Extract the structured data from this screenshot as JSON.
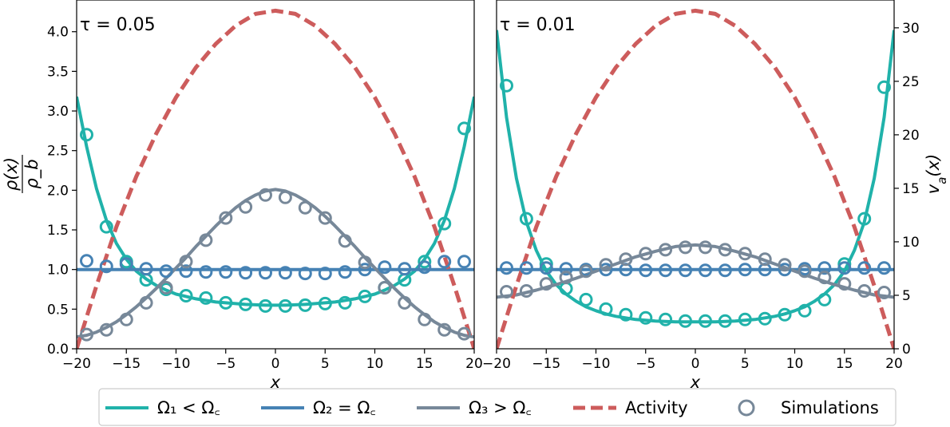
{
  "chart_data": [
    {
      "type": "line",
      "panel_label": "τ = 0.05",
      "xlabel": "x",
      "ylabel": "ρ(x) / ρ_b",
      "ylabel_num": "ρ(x)",
      "ylabel_den": "ρ_b",
      "xlim": [
        -20,
        20
      ],
      "ylim": [
        0,
        4.4
      ],
      "y2lim": [
        0,
        32.6
      ],
      "xticks": [
        -20,
        -15,
        -10,
        -5,
        0,
        5,
        10,
        15,
        20
      ],
      "xticklabels": [
        "−20",
        "−15",
        "−10",
        "−5",
        "0",
        "5",
        "10",
        "15",
        "20"
      ],
      "yticks": [
        0,
        0.5,
        1.0,
        1.5,
        2.0,
        2.5,
        3.0,
        3.5,
        4.0
      ],
      "yticklabels": [
        "0.0",
        "0.5",
        "1.0",
        "1.5",
        "2.0",
        "2.5",
        "3.0",
        "3.5",
        "4.0"
      ],
      "grid": false,
      "series": [
        {
          "name": "Ω₁ < Ω꜀",
          "kind": "line",
          "color": "#20b2aa",
          "x": [
            -20,
            -19,
            -18,
            -17,
            -16,
            -15,
            -14,
            -13,
            -12,
            -11,
            -10,
            -9,
            -8,
            -7,
            -6,
            -5,
            -4,
            -3,
            -2,
            -1,
            0,
            1,
            2,
            3,
            4,
            5,
            6,
            7,
            8,
            9,
            10,
            11,
            12,
            13,
            14,
            15,
            16,
            17,
            18,
            19,
            20
          ],
          "y": [
            3.18,
            2.55,
            2.02,
            1.62,
            1.33,
            1.13,
            0.98,
            0.88,
            0.8,
            0.74,
            0.69,
            0.66,
            0.63,
            0.61,
            0.59,
            0.58,
            0.57,
            0.56,
            0.555,
            0.55,
            0.55,
            0.55,
            0.555,
            0.56,
            0.57,
            0.58,
            0.59,
            0.61,
            0.63,
            0.66,
            0.69,
            0.74,
            0.8,
            0.88,
            0.98,
            1.13,
            1.33,
            1.62,
            2.02,
            2.55,
            3.18
          ]
        },
        {
          "name": "Ω₂ = Ω꜀",
          "kind": "line",
          "color": "#4682b4",
          "x": [
            -20,
            20
          ],
          "y": [
            1.0,
            1.0
          ]
        },
        {
          "name": "Ω₃ > Ω꜀",
          "kind": "line",
          "color": "#778899",
          "x": [
            -20,
            -19,
            -18,
            -17,
            -16,
            -15,
            -14,
            -13,
            -12,
            -11,
            -10,
            -9,
            -8,
            -7,
            -6,
            -5,
            -4,
            -3,
            -2,
            -1,
            0,
            1,
            2,
            3,
            4,
            5,
            6,
            7,
            8,
            9,
            10,
            11,
            12,
            13,
            14,
            15,
            16,
            17,
            18,
            19,
            20
          ],
          "y": [
            0.15,
            0.17,
            0.21,
            0.27,
            0.34,
            0.43,
            0.53,
            0.64,
            0.76,
            0.89,
            1.02,
            1.15,
            1.29,
            1.42,
            1.55,
            1.67,
            1.78,
            1.87,
            1.94,
            1.99,
            2.01,
            1.99,
            1.94,
            1.87,
            1.78,
            1.67,
            1.55,
            1.42,
            1.29,
            1.15,
            1.02,
            0.89,
            0.76,
            0.64,
            0.53,
            0.43,
            0.34,
            0.27,
            0.21,
            0.17,
            0.15
          ]
        },
        {
          "name": "Activity",
          "kind": "dashed",
          "color": "#cd5c5c",
          "axis": "right",
          "x": [
            -20,
            -18,
            -16,
            -14,
            -12,
            -10,
            -8,
            -6,
            -4,
            -2,
            0,
            2,
            4,
            6,
            8,
            10,
            12,
            14,
            16,
            18,
            20
          ],
          "y": [
            0,
            5.9,
            11.4,
            16.1,
            20.1,
            23.5,
            26.3,
            28.5,
            30.2,
            31.3,
            31.6,
            31.3,
            30.2,
            28.5,
            26.3,
            23.5,
            20.1,
            16.1,
            11.4,
            5.9,
            0
          ]
        },
        {
          "name": "Simulations Ω₁",
          "kind": "markers",
          "color": "#20b2aa",
          "x": [
            -19,
            -17,
            -15,
            -13,
            -11,
            -9,
            -7,
            -5,
            -3,
            -1,
            1,
            3,
            5,
            7,
            9,
            11,
            13,
            15,
            17,
            19
          ],
          "y": [
            2.7,
            1.54,
            1.1,
            0.87,
            0.75,
            0.67,
            0.64,
            0.58,
            0.56,
            0.54,
            0.54,
            0.55,
            0.57,
            0.58,
            0.66,
            0.77,
            0.87,
            1.1,
            1.58,
            2.78
          ]
        },
        {
          "name": "Simulations Ω₂",
          "kind": "markers",
          "color": "#4682b4",
          "x": [
            -19,
            -17,
            -15,
            -13,
            -11,
            -9,
            -7,
            -5,
            -3,
            -1,
            1,
            3,
            5,
            7,
            9,
            11,
            13,
            15,
            17,
            19
          ],
          "y": [
            1.11,
            1.04,
            1.07,
            1.01,
            0.98,
            0.98,
            0.97,
            0.97,
            0.96,
            0.96,
            0.96,
            0.95,
            0.95,
            0.97,
            1.0,
            1.03,
            1.01,
            1.03,
            1.1,
            1.1
          ]
        },
        {
          "name": "Simulations Ω₃",
          "kind": "markers",
          "color": "#778899",
          "x": [
            -19,
            -17,
            -15,
            -13,
            -11,
            -9,
            -7,
            -5,
            -3,
            -1,
            1,
            3,
            5,
            7,
            9,
            11,
            13,
            15,
            17,
            19
          ],
          "y": [
            0.18,
            0.24,
            0.37,
            0.58,
            0.77,
            1.1,
            1.37,
            1.65,
            1.79,
            1.94,
            1.91,
            1.78,
            1.65,
            1.36,
            1.09,
            0.77,
            0.58,
            0.37,
            0.24,
            0.19
          ]
        }
      ]
    },
    {
      "type": "line",
      "panel_label": "τ = 0.01",
      "xlabel": "x",
      "y2label": "v_a(x)",
      "y2label_main": "v",
      "y2label_sub": "a",
      "y2label_tail": "(x)",
      "xlim": [
        -20,
        20
      ],
      "ylim": [
        0,
        4.4
      ],
      "y2lim": [
        0,
        32.6
      ],
      "xticks": [
        -20,
        -15,
        -10,
        -5,
        0,
        5,
        10,
        15,
        20
      ],
      "xticklabels": [
        "−20",
        "−15",
        "−10",
        "−5",
        "0",
        "5",
        "10",
        "15",
        "20"
      ],
      "y2ticks": [
        0,
        5,
        10,
        15,
        20,
        25,
        30
      ],
      "y2ticklabels": [
        "0",
        "5",
        "10",
        "15",
        "20",
        "25",
        "30"
      ],
      "grid": false,
      "series": [
        {
          "name": "Ω₁ < Ω꜀",
          "kind": "line",
          "color": "#20b2aa",
          "x": [
            -20,
            -19,
            -18,
            -17,
            -16,
            -15,
            -14,
            -13,
            -12,
            -11,
            -10,
            -9,
            -8,
            -7,
            -6,
            -5,
            -4,
            -3,
            -2,
            -1,
            0,
            1,
            2,
            3,
            4,
            5,
            6,
            7,
            8,
            9,
            10,
            11,
            12,
            13,
            14,
            15,
            16,
            17,
            18,
            19,
            20
          ],
          "y": [
            4.02,
            2.92,
            2.15,
            1.6,
            1.24,
            0.98,
            0.81,
            0.69,
            0.6,
            0.53,
            0.48,
            0.44,
            0.41,
            0.39,
            0.37,
            0.36,
            0.35,
            0.345,
            0.34,
            0.34,
            0.34,
            0.34,
            0.34,
            0.345,
            0.35,
            0.36,
            0.37,
            0.39,
            0.41,
            0.44,
            0.48,
            0.53,
            0.6,
            0.69,
            0.81,
            0.98,
            1.24,
            1.6,
            2.15,
            2.92,
            4.02
          ]
        },
        {
          "name": "Ω₂ = Ω꜀",
          "kind": "line",
          "color": "#4682b4",
          "x": [
            -20,
            20
          ],
          "y": [
            1.0,
            1.0
          ]
        },
        {
          "name": "Ω₃ > Ω꜀",
          "kind": "line",
          "color": "#778899",
          "x": [
            -20,
            -18,
            -16,
            -14,
            -12,
            -10,
            -8,
            -6,
            -4,
            -2,
            0,
            2,
            4,
            6,
            8,
            10,
            12,
            14,
            16,
            18,
            20
          ],
          "y": [
            0.65,
            0.68,
            0.74,
            0.81,
            0.89,
            0.98,
            1.07,
            1.16,
            1.23,
            1.29,
            1.31,
            1.29,
            1.23,
            1.16,
            1.07,
            0.98,
            0.89,
            0.81,
            0.74,
            0.68,
            0.65
          ]
        },
        {
          "name": "Activity",
          "kind": "dashed",
          "color": "#cd5c5c",
          "axis": "right",
          "x": [
            -20,
            -18,
            -16,
            -14,
            -12,
            -10,
            -8,
            -6,
            -4,
            -2,
            0,
            2,
            4,
            6,
            8,
            10,
            12,
            14,
            16,
            18,
            20
          ],
          "y": [
            0,
            5.9,
            11.4,
            16.1,
            20.1,
            23.5,
            26.3,
            28.5,
            30.2,
            31.3,
            31.6,
            31.3,
            30.2,
            28.5,
            26.3,
            23.5,
            20.1,
            16.1,
            11.4,
            5.9,
            0
          ]
        },
        {
          "name": "Simulations Ω₁",
          "kind": "markers",
          "color": "#20b2aa",
          "x": [
            -19,
            -17,
            -15,
            -13,
            -11,
            -9,
            -7,
            -5,
            -3,
            -1,
            1,
            3,
            5,
            7,
            9,
            11,
            13,
            15,
            17,
            19
          ],
          "y": [
            3.32,
            1.64,
            1.07,
            0.76,
            0.62,
            0.5,
            0.43,
            0.39,
            0.37,
            0.35,
            0.35,
            0.35,
            0.37,
            0.38,
            0.43,
            0.48,
            0.62,
            1.07,
            1.64,
            3.3
          ]
        },
        {
          "name": "Simulations Ω₂",
          "kind": "markers",
          "color": "#4682b4",
          "x": [
            -19,
            -17,
            -15,
            -13,
            -11,
            -9,
            -7,
            -5,
            -3,
            -1,
            1,
            3,
            5,
            7,
            9,
            11,
            13,
            15,
            17,
            19
          ],
          "y": [
            1.02,
            1.02,
            1.02,
            1.01,
            1.0,
            1.0,
            1.0,
            0.99,
            0.99,
            0.99,
            0.99,
            0.99,
            1.0,
            1.0,
            1.0,
            1.01,
            1.02,
            1.02,
            1.02,
            1.02
          ]
        },
        {
          "name": "Simulations Ω₃",
          "kind": "markers",
          "color": "#778899",
          "x": [
            -19,
            -17,
            -15,
            -13,
            -11,
            -9,
            -7,
            -5,
            -3,
            -1,
            1,
            3,
            5,
            7,
            9,
            11,
            13,
            15,
            17,
            19
          ],
          "y": [
            0.72,
            0.73,
            0.82,
            0.9,
            0.98,
            1.06,
            1.13,
            1.2,
            1.25,
            1.28,
            1.28,
            1.25,
            1.2,
            1.13,
            1.06,
            0.98,
            0.9,
            0.82,
            0.73,
            0.71
          ]
        }
      ]
    }
  ],
  "legend": {
    "placement": "bottom",
    "items": [
      {
        "label": "Ω₁ < Ω꜀",
        "style": "line",
        "color": "#20b2aa"
      },
      {
        "label": "Ω₂ = Ω꜀",
        "style": "line",
        "color": "#4682b4"
      },
      {
        "label": "Ω₃ > Ω꜀",
        "style": "line",
        "color": "#778899"
      },
      {
        "label": "Activity",
        "style": "dashed",
        "color": "#cd5c5c"
      },
      {
        "label": "Simulations",
        "style": "marker",
        "color": "#778899"
      }
    ]
  }
}
